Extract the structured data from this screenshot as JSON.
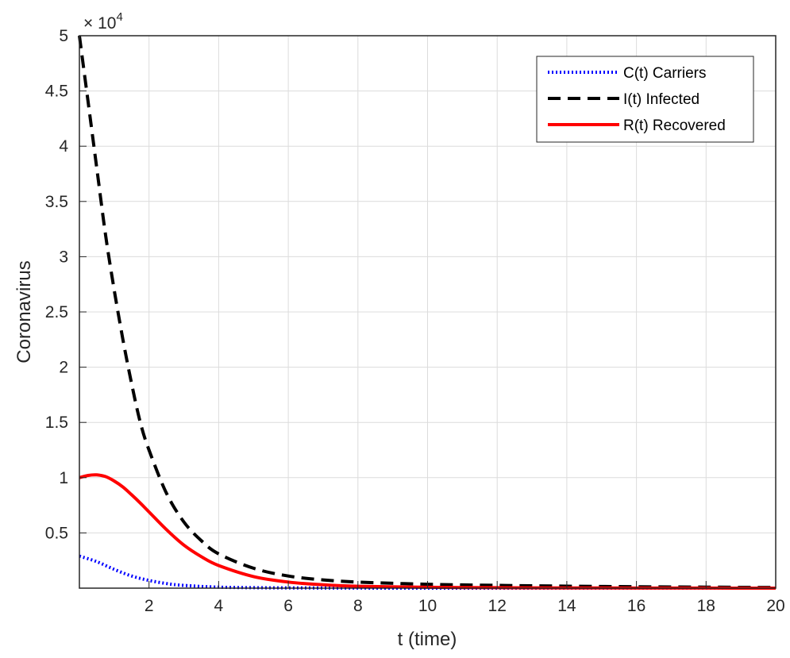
{
  "chart_data": {
    "type": "line",
    "title": "",
    "xlabel": "t (time)",
    "ylabel": "Coronavirus",
    "y_exponent_label": "× 10",
    "y_exponent_power": "4",
    "xlim": [
      0,
      20
    ],
    "ylim": [
      0,
      50000
    ],
    "grid": true,
    "legend_position": "top-right",
    "x_ticks": [
      2,
      4,
      6,
      8,
      10,
      12,
      14,
      16,
      18,
      20
    ],
    "x_tick_labels": [
      "2",
      "4",
      "6",
      "8",
      "10",
      "12",
      "14",
      "16",
      "18",
      "20"
    ],
    "y_ticks": [
      5000,
      10000,
      15000,
      20000,
      25000,
      30000,
      35000,
      40000,
      45000,
      50000
    ],
    "y_tick_labels": [
      "0.5",
      "1",
      "1.5",
      "2",
      "2.5",
      "3",
      "3.5",
      "4",
      "4.5",
      "5"
    ],
    "series": [
      {
        "name": "C(t) Carriers",
        "color": "#0000ff",
        "style": "dotted",
        "x": [
          0,
          0.5,
          1,
          1.5,
          2,
          2.5,
          3,
          4,
          5,
          6,
          8,
          10,
          15,
          20
        ],
        "y": [
          2900,
          2400,
          1700,
          1100,
          700,
          420,
          250,
          90,
          40,
          20,
          5,
          0,
          0,
          0
        ]
      },
      {
        "name": "I(t) Infected",
        "color": "#000000",
        "style": "dashed",
        "x": [
          0,
          0.25,
          0.5,
          0.75,
          1,
          1.25,
          1.5,
          1.75,
          2,
          2.5,
          3,
          3.5,
          4,
          5,
          6,
          7,
          8,
          10,
          12,
          14,
          16,
          18,
          20
        ],
        "y": [
          50000,
          44000,
          38000,
          32000,
          27000,
          22500,
          18500,
          15000,
          12500,
          8600,
          6000,
          4300,
          3100,
          1800,
          1100,
          750,
          550,
          350,
          250,
          180,
          130,
          90,
          60
        ]
      },
      {
        "name": "R(t) Recovered",
        "color": "#ff0000",
        "style": "solid",
        "x": [
          0,
          0.25,
          0.5,
          0.75,
          1,
          1.25,
          1.5,
          1.75,
          2,
          2.5,
          3,
          3.5,
          4,
          5,
          6,
          7,
          8,
          10,
          12,
          14,
          16,
          18,
          20
        ],
        "y": [
          10000,
          10200,
          10250,
          10100,
          9700,
          9150,
          8450,
          7700,
          6900,
          5300,
          3900,
          2850,
          2050,
          1050,
          550,
          300,
          170,
          80,
          40,
          20,
          10,
          5,
          0
        ]
      }
    ]
  }
}
